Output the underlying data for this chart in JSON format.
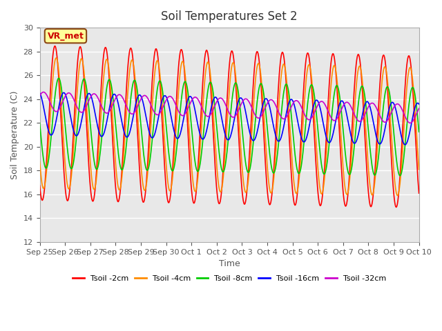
{
  "title": "Soil Temperatures Set 2",
  "xlabel": "Time",
  "ylabel": "Soil Temperature (C)",
  "ylim": [
    12,
    30
  ],
  "yticks": [
    12,
    14,
    16,
    18,
    20,
    22,
    24,
    26,
    28,
    30
  ],
  "annotation_text": "VR_met",
  "annotation_bg": "#FFFF99",
  "annotation_border": "#8B4513",
  "bg_color": "#E8E8E8",
  "series_colors": [
    "#FF0000",
    "#FF8C00",
    "#00CC00",
    "#0000FF",
    "#CC00CC"
  ],
  "series_labels": [
    "Tsoil -2cm",
    "Tsoil -4cm",
    "Tsoil -8cm",
    "Tsoil -16cm",
    "Tsoil -32cm"
  ],
  "xtick_labels": [
    "Sep 25",
    "Sep 26",
    "Sep 27",
    "Sep 28",
    "Sep 29",
    "Sep 30",
    "Oct 1",
    "Oct 2",
    "Oct 3",
    "Oct 4",
    "Oct 5",
    "Oct 6",
    "Oct 7",
    "Oct 8",
    "Oct 9",
    "Oct 10"
  ],
  "n_days": 15,
  "points_per_day": 48,
  "amplitudes": [
    6.5,
    5.5,
    3.8,
    1.8,
    0.8
  ],
  "phase_shifts": [
    0.0,
    0.05,
    0.15,
    0.35,
    0.55
  ],
  "mean_drift": [
    -0.05,
    -0.05,
    -0.05,
    -0.06,
    -0.07
  ],
  "mean_start": [
    22.0,
    22.0,
    22.0,
    22.8,
    23.8
  ]
}
